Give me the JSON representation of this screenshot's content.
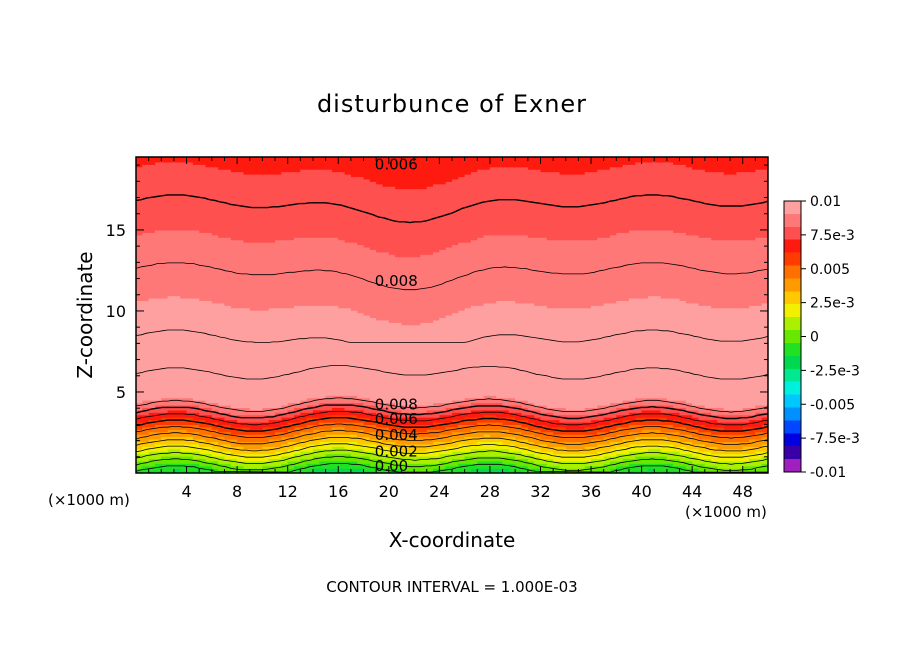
{
  "chart_data": {
    "type": "contour",
    "title": "disturbunce of Exner",
    "xlabel": "X-coordinate",
    "ylabel": "Z-coordinate",
    "x_unit_left": "(×1000 m)",
    "x_unit_right": "(×1000 m)",
    "xlim": [
      0,
      50
    ],
    "ylim": [
      0,
      19.5
    ],
    "x_ticks": [
      4,
      8,
      12,
      16,
      20,
      24,
      28,
      32,
      36,
      40,
      44,
      48
    ],
    "x_tick_labels": [
      "4",
      "8",
      "12",
      "16",
      "20",
      "24",
      "28",
      "32",
      "36",
      "40",
      "44",
      "48"
    ],
    "y_ticks": [
      5,
      10,
      15
    ],
    "y_tick_labels": [
      "5",
      "10",
      "15"
    ],
    "footer": "CONTOUR INTERVAL = 1.000E-03",
    "contour_interval": 0.001,
    "colorbar": {
      "range": [
        -0.01,
        0.01
      ],
      "tick_values": [
        0.01,
        0.0075,
        0.005,
        0.0025,
        0,
        -0.0025,
        -0.005,
        -0.0075,
        -0.01
      ],
      "tick_labels": [
        "0.01",
        "7.5e-3",
        "0.005",
        "2.5e-3",
        "0",
        "-2.5e-3",
        "-0.005",
        "-7.5e-3",
        "-0.01"
      ],
      "colors": [
        "#9f1fbf",
        "#3a00a8",
        "#0000e0",
        "#0048ff",
        "#0090ff",
        "#00c8ff",
        "#00f0e0",
        "#00e890",
        "#00d850",
        "#22e022",
        "#66e800",
        "#aaf000",
        "#f0f000",
        "#ffc800",
        "#ff9a00",
        "#ff7000",
        "#ff3c00",
        "#ff1a10",
        "#ff5050",
        "#ff7878",
        "#ffa0a0"
      ]
    },
    "contour_labels": [
      {
        "text": "0.006",
        "x": 20,
        "z": 19.1
      },
      {
        "text": "0.008",
        "x": 20,
        "z": 11.9
      },
      {
        "text": "0.008",
        "x": 20,
        "z": 4.3
      },
      {
        "text": "0.006",
        "x": 20,
        "z": 3.4
      },
      {
        "text": "0.004",
        "x": 20,
        "z": 2.4
      },
      {
        "text": "0.002",
        "x": 20,
        "z": 1.4
      },
      {
        "text": "0.00",
        "x": 20,
        "z": 0.5
      }
    ]
  }
}
